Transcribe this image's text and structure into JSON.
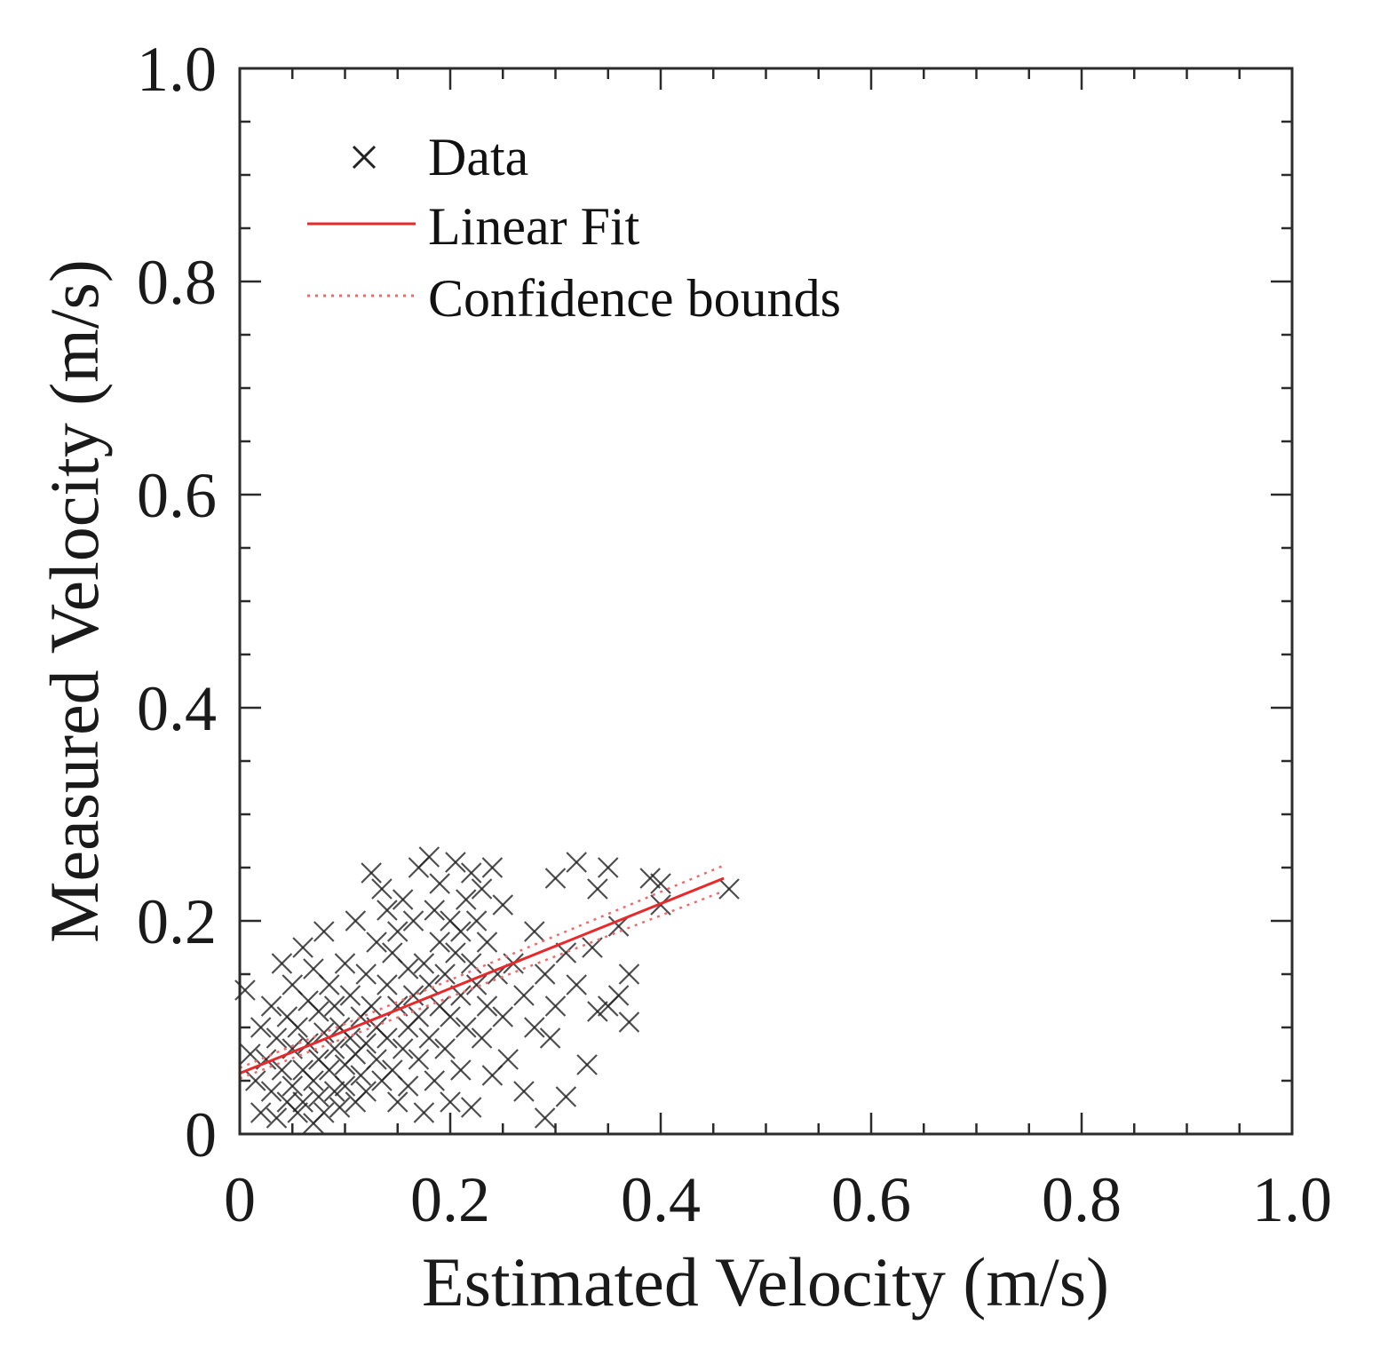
{
  "chart_data": {
    "type": "scatter",
    "title": "",
    "xlabel": "Estimated Velocity (m/s)",
    "ylabel": "Measured Velocity (m/s)",
    "xlim": [
      0,
      1.0
    ],
    "ylim": [
      0,
      1.0
    ],
    "xticks": [
      {
        "value": 0,
        "label": "0"
      },
      {
        "value": 0.2,
        "label": "0.2"
      },
      {
        "value": 0.4,
        "label": "0.4"
      },
      {
        "value": 0.6,
        "label": "0.6"
      },
      {
        "value": 0.8,
        "label": "0.8"
      },
      {
        "value": 1.0,
        "label": "1.0"
      }
    ],
    "yticks": [
      {
        "value": 0,
        "label": "0"
      },
      {
        "value": 0.2,
        "label": "0.2"
      },
      {
        "value": 0.4,
        "label": "0.4"
      },
      {
        "value": 0.6,
        "label": "0.6"
      },
      {
        "value": 0.8,
        "label": "0.8"
      },
      {
        "value": 1.0,
        "label": "1.0"
      }
    ],
    "minor_tick_step": 0.05,
    "grid": false,
    "legend": {
      "location": "top-left",
      "entries": [
        {
          "label": "Data",
          "marker": "x",
          "color": "#222222"
        },
        {
          "label": "Linear Fit",
          "style": "solid",
          "color": "#e8282a"
        },
        {
          "label": "Confidence bounds",
          "style": "dotted",
          "color": "#f06a6a"
        }
      ]
    },
    "series": [
      {
        "name": "Data",
        "kind": "scatter",
        "marker": "x",
        "color": "#222222",
        "points": [
          [
            0.005,
            0.135
          ],
          [
            0.01,
            0.075
          ],
          [
            0.015,
            0.05
          ],
          [
            0.02,
            0.02
          ],
          [
            0.02,
            0.1
          ],
          [
            0.025,
            0.07
          ],
          [
            0.03,
            0.04
          ],
          [
            0.03,
            0.12
          ],
          [
            0.035,
            0.09
          ],
          [
            0.035,
            0.015
          ],
          [
            0.04,
            0.06
          ],
          [
            0.04,
            0.16
          ],
          [
            0.045,
            0.03
          ],
          [
            0.045,
            0.11
          ],
          [
            0.05,
            0.08
          ],
          [
            0.05,
            0.045
          ],
          [
            0.05,
            0.14
          ],
          [
            0.055,
            0.02
          ],
          [
            0.055,
            0.1
          ],
          [
            0.06,
            0.06
          ],
          [
            0.06,
            0.175
          ],
          [
            0.06,
            0.03
          ],
          [
            0.065,
            0.125
          ],
          [
            0.065,
            0.085
          ],
          [
            0.07,
            0.01
          ],
          [
            0.07,
            0.05
          ],
          [
            0.07,
            0.155
          ],
          [
            0.075,
            0.07
          ],
          [
            0.075,
            0.035
          ],
          [
            0.075,
            0.115
          ],
          [
            0.08,
            0.095
          ],
          [
            0.08,
            0.02
          ],
          [
            0.08,
            0.19
          ],
          [
            0.085,
            0.06
          ],
          [
            0.085,
            0.14
          ],
          [
            0.09,
            0.04
          ],
          [
            0.09,
            0.08
          ],
          [
            0.09,
            0.12
          ],
          [
            0.095,
            0.025
          ],
          [
            0.095,
            0.1
          ],
          [
            0.1,
            0.065
          ],
          [
            0.1,
            0.16
          ],
          [
            0.1,
            0.045
          ],
          [
            0.105,
            0.09
          ],
          [
            0.105,
            0.13
          ],
          [
            0.11,
            0.03
          ],
          [
            0.11,
            0.075
          ],
          [
            0.11,
            0.2
          ],
          [
            0.115,
            0.11
          ],
          [
            0.115,
            0.055
          ],
          [
            0.12,
            0.085
          ],
          [
            0.12,
            0.15
          ],
          [
            0.12,
            0.04
          ],
          [
            0.125,
            0.245
          ],
          [
            0.125,
            0.12
          ],
          [
            0.13,
            0.07
          ],
          [
            0.13,
            0.18
          ],
          [
            0.13,
            0.1
          ],
          [
            0.135,
            0.05
          ],
          [
            0.135,
            0.23
          ],
          [
            0.14,
            0.14
          ],
          [
            0.14,
            0.09
          ],
          [
            0.14,
            0.21
          ],
          [
            0.145,
            0.06
          ],
          [
            0.145,
            0.17
          ],
          [
            0.15,
            0.12
          ],
          [
            0.15,
            0.03
          ],
          [
            0.15,
            0.19
          ],
          [
            0.155,
            0.08
          ],
          [
            0.155,
            0.22
          ],
          [
            0.16,
            0.1
          ],
          [
            0.16,
            0.155
          ],
          [
            0.16,
            0.045
          ],
          [
            0.165,
            0.13
          ],
          [
            0.165,
            0.2
          ],
          [
            0.17,
            0.07
          ],
          [
            0.17,
            0.25
          ],
          [
            0.17,
            0.11
          ],
          [
            0.175,
            0.16
          ],
          [
            0.175,
            0.02
          ],
          [
            0.18,
            0.26
          ],
          [
            0.18,
            0.09
          ],
          [
            0.18,
            0.14
          ],
          [
            0.185,
            0.21
          ],
          [
            0.185,
            0.05
          ],
          [
            0.19,
            0.12
          ],
          [
            0.19,
            0.18
          ],
          [
            0.19,
            0.235
          ],
          [
            0.195,
            0.08
          ],
          [
            0.195,
            0.15
          ],
          [
            0.2,
            0.2
          ],
          [
            0.2,
            0.03
          ],
          [
            0.2,
            0.11
          ],
          [
            0.205,
            0.255
          ],
          [
            0.205,
            0.17
          ],
          [
            0.21,
            0.13
          ],
          [
            0.21,
            0.19
          ],
          [
            0.21,
            0.06
          ],
          [
            0.215,
            0.22
          ],
          [
            0.215,
            0.1
          ],
          [
            0.22,
            0.16
          ],
          [
            0.22,
            0.245
          ],
          [
            0.22,
            0.025
          ],
          [
            0.225,
            0.14
          ],
          [
            0.225,
            0.2
          ],
          [
            0.23,
            0.09
          ],
          [
            0.23,
            0.23
          ],
          [
            0.235,
            0.12
          ],
          [
            0.235,
            0.18
          ],
          [
            0.24,
            0.055
          ],
          [
            0.24,
            0.25
          ],
          [
            0.245,
            0.15
          ],
          [
            0.25,
            0.11
          ],
          [
            0.25,
            0.215
          ],
          [
            0.255,
            0.07
          ],
          [
            0.26,
            0.16
          ],
          [
            0.27,
            0.13
          ],
          [
            0.27,
            0.04
          ],
          [
            0.28,
            0.19
          ],
          [
            0.28,
            0.1
          ],
          [
            0.29,
            0.15
          ],
          [
            0.29,
            0.015
          ],
          [
            0.295,
            0.09
          ],
          [
            0.3,
            0.24
          ],
          [
            0.3,
            0.12
          ],
          [
            0.31,
            0.035
          ],
          [
            0.31,
            0.17
          ],
          [
            0.32,
            0.255
          ],
          [
            0.32,
            0.14
          ],
          [
            0.33,
            0.065
          ],
          [
            0.335,
            0.175
          ],
          [
            0.34,
            0.115
          ],
          [
            0.34,
            0.23
          ],
          [
            0.35,
            0.25
          ],
          [
            0.35,
            0.12
          ],
          [
            0.36,
            0.195
          ],
          [
            0.36,
            0.13
          ],
          [
            0.37,
            0.15
          ],
          [
            0.37,
            0.105
          ],
          [
            0.39,
            0.24
          ],
          [
            0.4,
            0.235
          ],
          [
            0.4,
            0.215
          ],
          [
            0.465,
            0.23
          ]
        ]
      },
      {
        "name": "Linear Fit",
        "kind": "line",
        "style": "solid",
        "color": "#e8282a",
        "x": [
          0,
          0.46
        ],
        "y": [
          0.057,
          0.24
        ]
      },
      {
        "name": "Confidence bounds",
        "kind": "line",
        "style": "dotted",
        "color": "#f06a6a",
        "upper": {
          "x": [
            0,
            0.46
          ],
          "y": [
            0.062,
            0.252
          ]
        },
        "lower": {
          "x": [
            0,
            0.46
          ],
          "y": [
            0.052,
            0.228
          ]
        }
      }
    ]
  }
}
